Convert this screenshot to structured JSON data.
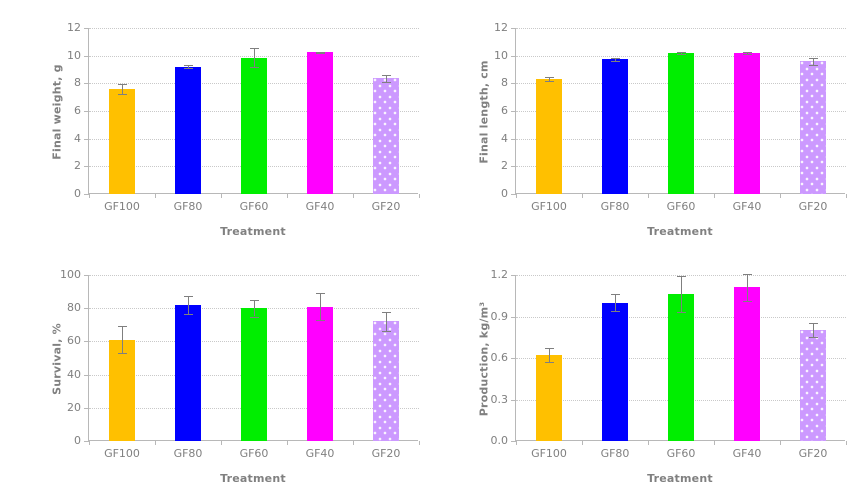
{
  "page": {
    "background": "#ffffff"
  },
  "colors": {
    "bar_fill": [
      "#FFC000",
      "#0000FF",
      "#00EE00",
      "#FF00FF",
      "#CC99FF"
    ],
    "bar_patterns": [
      null,
      null,
      null,
      null,
      "dots"
    ],
    "error_bar": "#7f7f7f",
    "gridline": "#c9c9c9",
    "axis_line": "#b8b8b8",
    "text": "#808080"
  },
  "chart_data": [
    {
      "type": "bar",
      "ylabel": "Final weight, g",
      "xlabel": "Treatment",
      "categories": [
        "GF100",
        "GF80",
        "GF60",
        "GF40",
        "GF20"
      ],
      "values": [
        7.6,
        9.2,
        9.85,
        10.25,
        8.35
      ],
      "errors": [
        0.35,
        0.1,
        0.7,
        0.05,
        0.25
      ],
      "ylim": [
        0,
        12
      ],
      "yticks": [
        "0",
        "2",
        "4",
        "6",
        "8",
        "10",
        "12"
      ],
      "grid": true,
      "legend": "none"
    },
    {
      "type": "bar",
      "ylabel": "Final  length, cm",
      "xlabel": "Treatment",
      "categories": [
        "GF100",
        "GF80",
        "GF60",
        "GF40",
        "GF20"
      ],
      "values": [
        8.3,
        9.75,
        10.2,
        10.2,
        9.6
      ],
      "errors": [
        0.15,
        0.1,
        0.05,
        0.07,
        0.25
      ],
      "ylim": [
        0,
        12
      ],
      "yticks": [
        "0",
        "2",
        "4",
        "6",
        "8",
        "10",
        "12"
      ],
      "grid": true,
      "legend": "none"
    },
    {
      "type": "bar",
      "ylabel": "Survival, %",
      "xlabel": "Treatment",
      "categories": [
        "GF100",
        "GF80",
        "GF60",
        "GF40",
        "GF20"
      ],
      "values": [
        61,
        82,
        80,
        81,
        72
      ],
      "errors": [
        8,
        5.5,
        5,
        8,
        6
      ],
      "ylim": [
        0,
        100
      ],
      "yticks": [
        "0",
        "20",
        "40",
        "60",
        "80",
        "100"
      ],
      "grid": true,
      "legend": "none"
    },
    {
      "type": "bar",
      "ylabel": "Production, kg/m³",
      "xlabel": "Treatment",
      "categories": [
        "GF100",
        "GF80",
        "GF60",
        "GF40",
        "GF20"
      ],
      "values": [
        0.62,
        1.0,
        1.06,
        1.11,
        0.8
      ],
      "errors": [
        0.05,
        0.06,
        0.13,
        0.1,
        0.05
      ],
      "ylim": [
        0,
        1.2
      ],
      "yticks": [
        "0.0",
        "0.3",
        "0.6",
        "0.9",
        "1.2"
      ],
      "grid": true,
      "legend": "none"
    }
  ]
}
